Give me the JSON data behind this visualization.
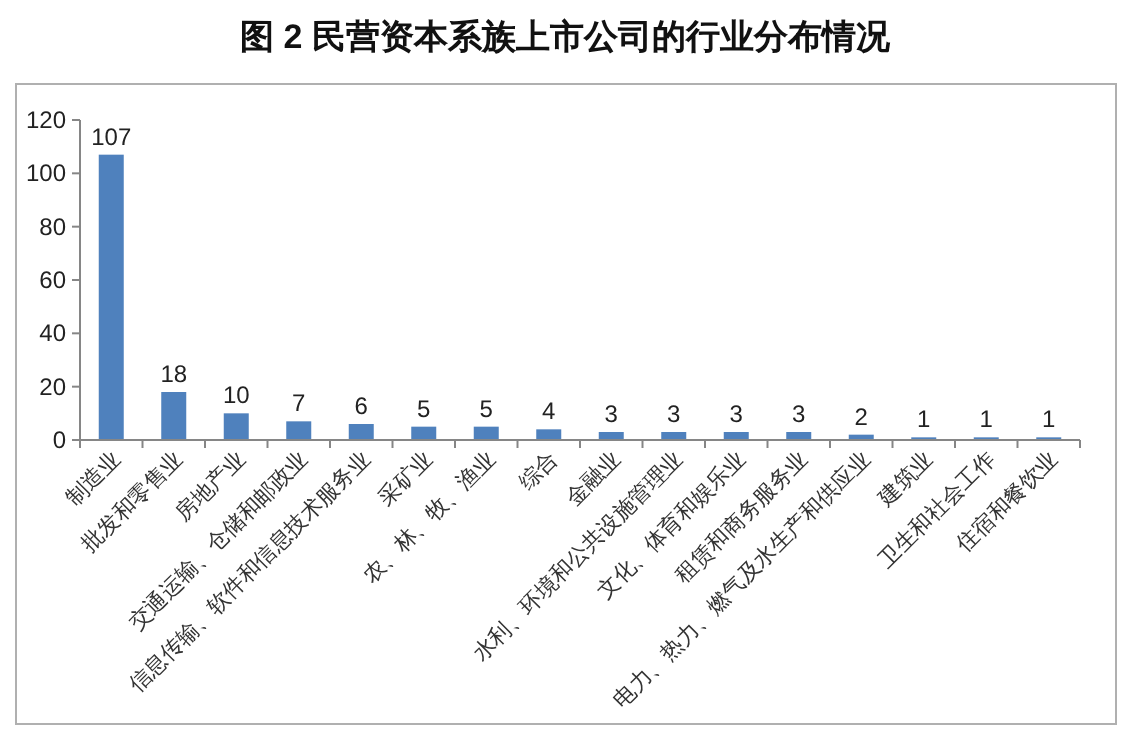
{
  "chart_data": {
    "type": "bar",
    "title": "图 2 民营资本系族上市公司的行业分布情况",
    "categories": [
      "制造业",
      "批发和零售业",
      "房地产业",
      "交通运输、仓储和邮政业",
      "信息传输、软件和信息技术服务业",
      "采矿业",
      "农、林、牧、渔业",
      "综合",
      "金融业",
      "水利、环境和公共设施管理业",
      "文化、体育和娱乐业",
      "租赁和商务服务业",
      "电力、热力、燃气及水生产和供应业",
      "建筑业",
      "卫生和社会工作",
      "住宿和餐饮业"
    ],
    "values": [
      107,
      18,
      10,
      7,
      6,
      5,
      5,
      4,
      3,
      3,
      3,
      3,
      2,
      1,
      1,
      1
    ],
    "color": "#4f81bd",
    "ylim": [
      0,
      120
    ],
    "yticks": [
      0,
      20,
      40,
      60,
      80,
      100,
      120
    ],
    "data_labels": true,
    "grid": false
  }
}
